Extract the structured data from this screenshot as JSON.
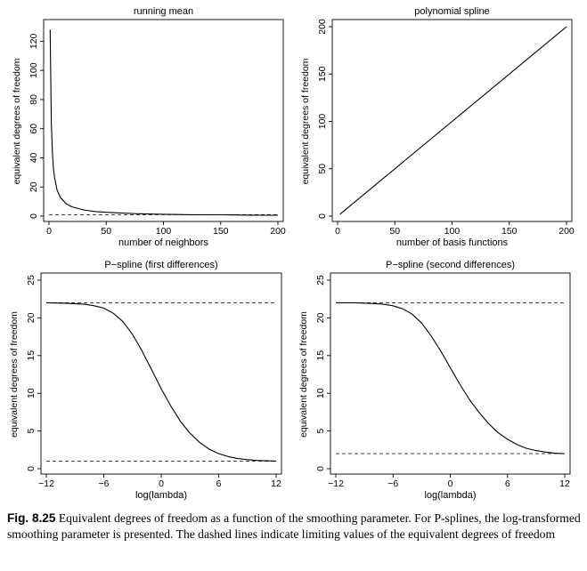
{
  "caption": {
    "label": "Fig. 8.25",
    "text": "Equivalent degrees of freedom as a function of the smoothing parameter. For P-splines, the log-transformed smoothing parameter is presented. The dashed lines indicate limiting values of the equivalent degrees of freedom"
  },
  "chart_data": [
    {
      "type": "line",
      "title": "running mean",
      "xlabel": "number of neighbors",
      "ylabel": "equivalent degrees of freedom",
      "xlim": [
        0,
        200
      ],
      "ylim": [
        0,
        130
      ],
      "xticks": [
        0,
        50,
        100,
        150,
        200
      ],
      "yticks": [
        0,
        20,
        40,
        60,
        80,
        100,
        120
      ],
      "grid": false,
      "series": [
        {
          "style": "solid",
          "x": [
            1,
            2,
            3,
            4,
            5,
            7,
            10,
            15,
            20,
            30,
            40,
            50,
            75,
            100,
            125,
            150,
            175,
            200
          ],
          "y": [
            128,
            64,
            43,
            32,
            26,
            18,
            12.8,
            8.5,
            6.4,
            4.3,
            3.2,
            2.6,
            1.7,
            1.3,
            1.0,
            0.9,
            0.7,
            0.6
          ]
        },
        {
          "style": "dashed",
          "x": [
            0,
            200
          ],
          "y": [
            1,
            1
          ]
        }
      ]
    },
    {
      "type": "line",
      "title": "polynomial spline",
      "xlabel": "number of basis functions",
      "ylabel": "equivalent degrees of freedom",
      "xlim": [
        0,
        200
      ],
      "ylim": [
        0,
        200
      ],
      "xticks": [
        0,
        50,
        100,
        150,
        200
      ],
      "yticks": [
        0,
        50,
        100,
        150,
        200
      ],
      "grid": false,
      "series": [
        {
          "style": "solid",
          "x": [
            2,
            200
          ],
          "y": [
            2,
            200
          ]
        }
      ]
    },
    {
      "type": "line",
      "title": "P−spline (first differences)",
      "xlabel": "log(lambda)",
      "ylabel": "equivalent degrees of freedom",
      "xlim": [
        -12,
        12
      ],
      "ylim": [
        0,
        25
      ],
      "xticks": [
        -12,
        -6,
        0,
        6,
        12
      ],
      "xtick_labels": [
        "−12",
        "−6",
        "0",
        "6",
        "12"
      ],
      "yticks": [
        0,
        5,
        10,
        15,
        20,
        25
      ],
      "grid": false,
      "series": [
        {
          "style": "solid",
          "x": [
            -12,
            -10,
            -8,
            -7,
            -6,
            -5,
            -4,
            -3,
            -2,
            -1,
            0,
            1,
            2,
            3,
            4,
            5,
            6,
            7,
            8,
            9,
            10,
            11,
            12
          ],
          "y": [
            22,
            21.95,
            21.8,
            21.6,
            21.3,
            20.6,
            19.5,
            17.8,
            15.6,
            13.1,
            10.6,
            8.3,
            6.3,
            4.7,
            3.5,
            2.6,
            2.0,
            1.6,
            1.35,
            1.2,
            1.1,
            1.05,
            1.02
          ]
        },
        {
          "style": "dashed",
          "x": [
            -12,
            12
          ],
          "y": [
            22,
            22
          ]
        },
        {
          "style": "dashed",
          "x": [
            -12,
            12
          ],
          "y": [
            1,
            1
          ]
        }
      ]
    },
    {
      "type": "line",
      "title": "P−spline (second differences)",
      "xlabel": "log(lambda)",
      "ylabel": "equivalent degrees of freedom",
      "xlim": [
        -12,
        12
      ],
      "ylim": [
        0,
        25
      ],
      "xticks": [
        -12,
        -6,
        0,
        6,
        12
      ],
      "xtick_labels": [
        "−12",
        "−6",
        "0",
        "6",
        "12"
      ],
      "yticks": [
        0,
        5,
        10,
        15,
        20,
        25
      ],
      "grid": false,
      "series": [
        {
          "style": "solid",
          "x": [
            -12,
            -10,
            -8,
            -7,
            -6,
            -5,
            -4,
            -3,
            -2,
            -1,
            0,
            1,
            2,
            3,
            4,
            5,
            6,
            7,
            8,
            9,
            10,
            11,
            12
          ],
          "y": [
            22,
            22,
            21.9,
            21.8,
            21.6,
            21.2,
            20.5,
            19.3,
            17.6,
            15.6,
            13.4,
            11.2,
            9.2,
            7.5,
            6.0,
            4.8,
            3.9,
            3.2,
            2.7,
            2.4,
            2.2,
            2.05,
            2.0
          ]
        },
        {
          "style": "dashed",
          "x": [
            -12,
            12
          ],
          "y": [
            22,
            22
          ]
        },
        {
          "style": "dashed",
          "x": [
            -12,
            12
          ],
          "y": [
            2,
            2
          ]
        }
      ]
    }
  ]
}
